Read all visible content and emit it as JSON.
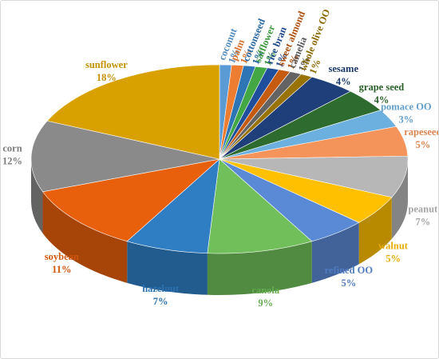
{
  "chart_data": {
    "type": "pie",
    "categories": [
      "coconut",
      "palm",
      "cottonseed",
      "safflower",
      "rice bran",
      "sweet almond",
      "camelia",
      "whole olive OO",
      "sesame",
      "grape seed",
      "pomace OO",
      "rapeseed",
      "peanut",
      "walnut",
      "refined OO",
      "canola",
      "hazelnut",
      "soybean",
      "corn",
      "sunflower"
    ],
    "values": [
      1,
      1,
      1,
      1,
      1,
      1,
      1,
      1,
      4,
      4,
      3,
      5,
      7,
      5,
      5,
      9,
      7,
      11,
      12,
      18
    ],
    "value_labels": [
      "1%",
      "1%",
      "1%",
      "1%",
      "1%",
      "1%",
      "1%",
      "1%",
      "4%",
      "4%",
      "3%",
      "5%",
      "7%",
      "5%",
      "5%",
      "9%",
      "7%",
      "11%",
      "12%",
      "18%"
    ],
    "colors": [
      "#5b9bd5",
      "#ed7d31",
      "#2e75b6",
      "#43a843",
      "#1f4e9c",
      "#c55a11",
      "#636363",
      "#997300",
      "#1f3f7a",
      "#2e6b2e",
      "#6cb0e0",
      "#f4945a",
      "#b7b7b7",
      "#ffc000",
      "#5a8ad6",
      "#70bf5a",
      "#2f7ec4",
      "#e8600c",
      "#8a8a8a",
      "#d9a100"
    ]
  }
}
